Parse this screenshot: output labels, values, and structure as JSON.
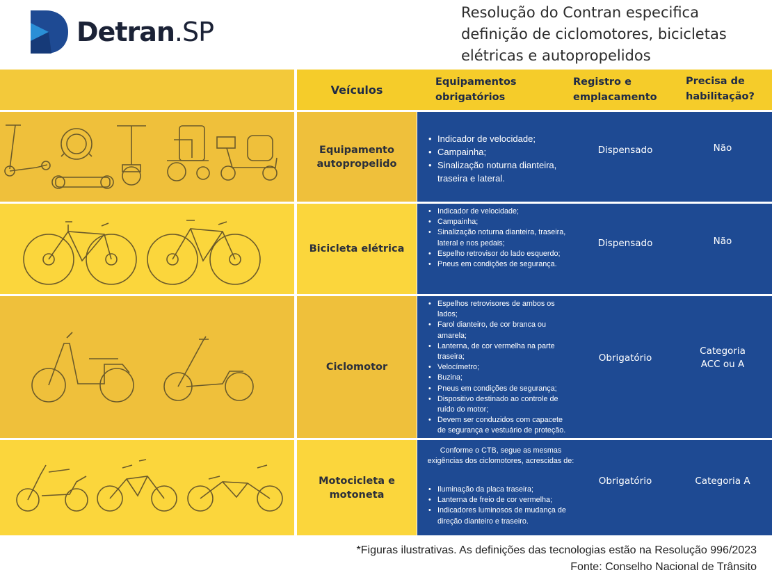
{
  "logo": {
    "brand_bold": "Detran",
    "brand_suffix": ".SP"
  },
  "title": "Resolução do Contran especifica definição de ciclomotores, bicicletas elétricas e autopropelidos",
  "headers": {
    "vehicles": "Veículos",
    "equipment": "Equipamentos obrigatórios",
    "registration": "Registro e emplacamento",
    "license": "Precisa de habilitação?"
  },
  "rows": [
    {
      "vehicle": "Equipamento autopropelido",
      "equipment_intro": "",
      "equipment": [
        "Indicador de velocidade;",
        "Campainha;",
        "Sinalização noturna dianteira, traseira e lateral."
      ],
      "registration": "Dispensado",
      "license": "Não"
    },
    {
      "vehicle": "Bicicleta elétrica",
      "equipment_intro": "",
      "equipment": [
        "Indicador de velocidade;",
        "Campainha;",
        "Sinalização noturna dianteira, traseira, lateral e nos pedais;",
        "Espelho retrovisor do lado esquerdo;",
        "Pneus em condições de segurança."
      ],
      "registration": "Dispensado",
      "license": "Não"
    },
    {
      "vehicle": "Ciclomotor",
      "equipment_intro": "",
      "equipment": [
        "Espelhos retrovisores de ambos os lados;",
        "Farol dianteiro, de cor branca ou amarela;",
        "Lanterna, de cor vermelha na parte traseira;",
        "Velocímetro;",
        "Buzina;",
        "Pneus em condições de segurança;",
        "Dispositivo destinado ao controle de ruído do motor;",
        "Devem ser conduzidos com capacete de segurança e vestuário de proteção."
      ],
      "registration": "Obrigatório",
      "license": "Categoria ACC ou A"
    },
    {
      "vehicle": "Motocicleta e motoneta",
      "equipment_intro": "Conforme o CTB, segue as mesmas exigências dos ciclomotores, acrescidas de:",
      "equipment": [
        "Iluminação da placa traseira;",
        "Lanterna de freio de cor vermelha;",
        "Indicadores luminosos de mudança de direção dianteiro e traseiro."
      ],
      "registration": "Obrigatório",
      "license": "Categoria A"
    }
  ],
  "footer": {
    "note": "*Figuras ilustrativas. As definições das tecnologias estão na Resolução 996/2023",
    "source": "Fonte: Conselho Nacional de Trânsito"
  },
  "colors": {
    "yellow_header": "#f5cc2a",
    "yellow_row_a": "#f0c03a",
    "yellow_row_b": "#fbd63c",
    "blue": "#1e4a93"
  },
  "icons": [
    "kick-scooter-icon",
    "monowheel-icon",
    "hoverboard-icon",
    "segway-icon",
    "wheelchair-icon",
    "mobility-scooter-icon",
    "electric-bicycle-icon",
    "moped-icon",
    "electric-scooter-icon",
    "motorcycle-icon"
  ]
}
